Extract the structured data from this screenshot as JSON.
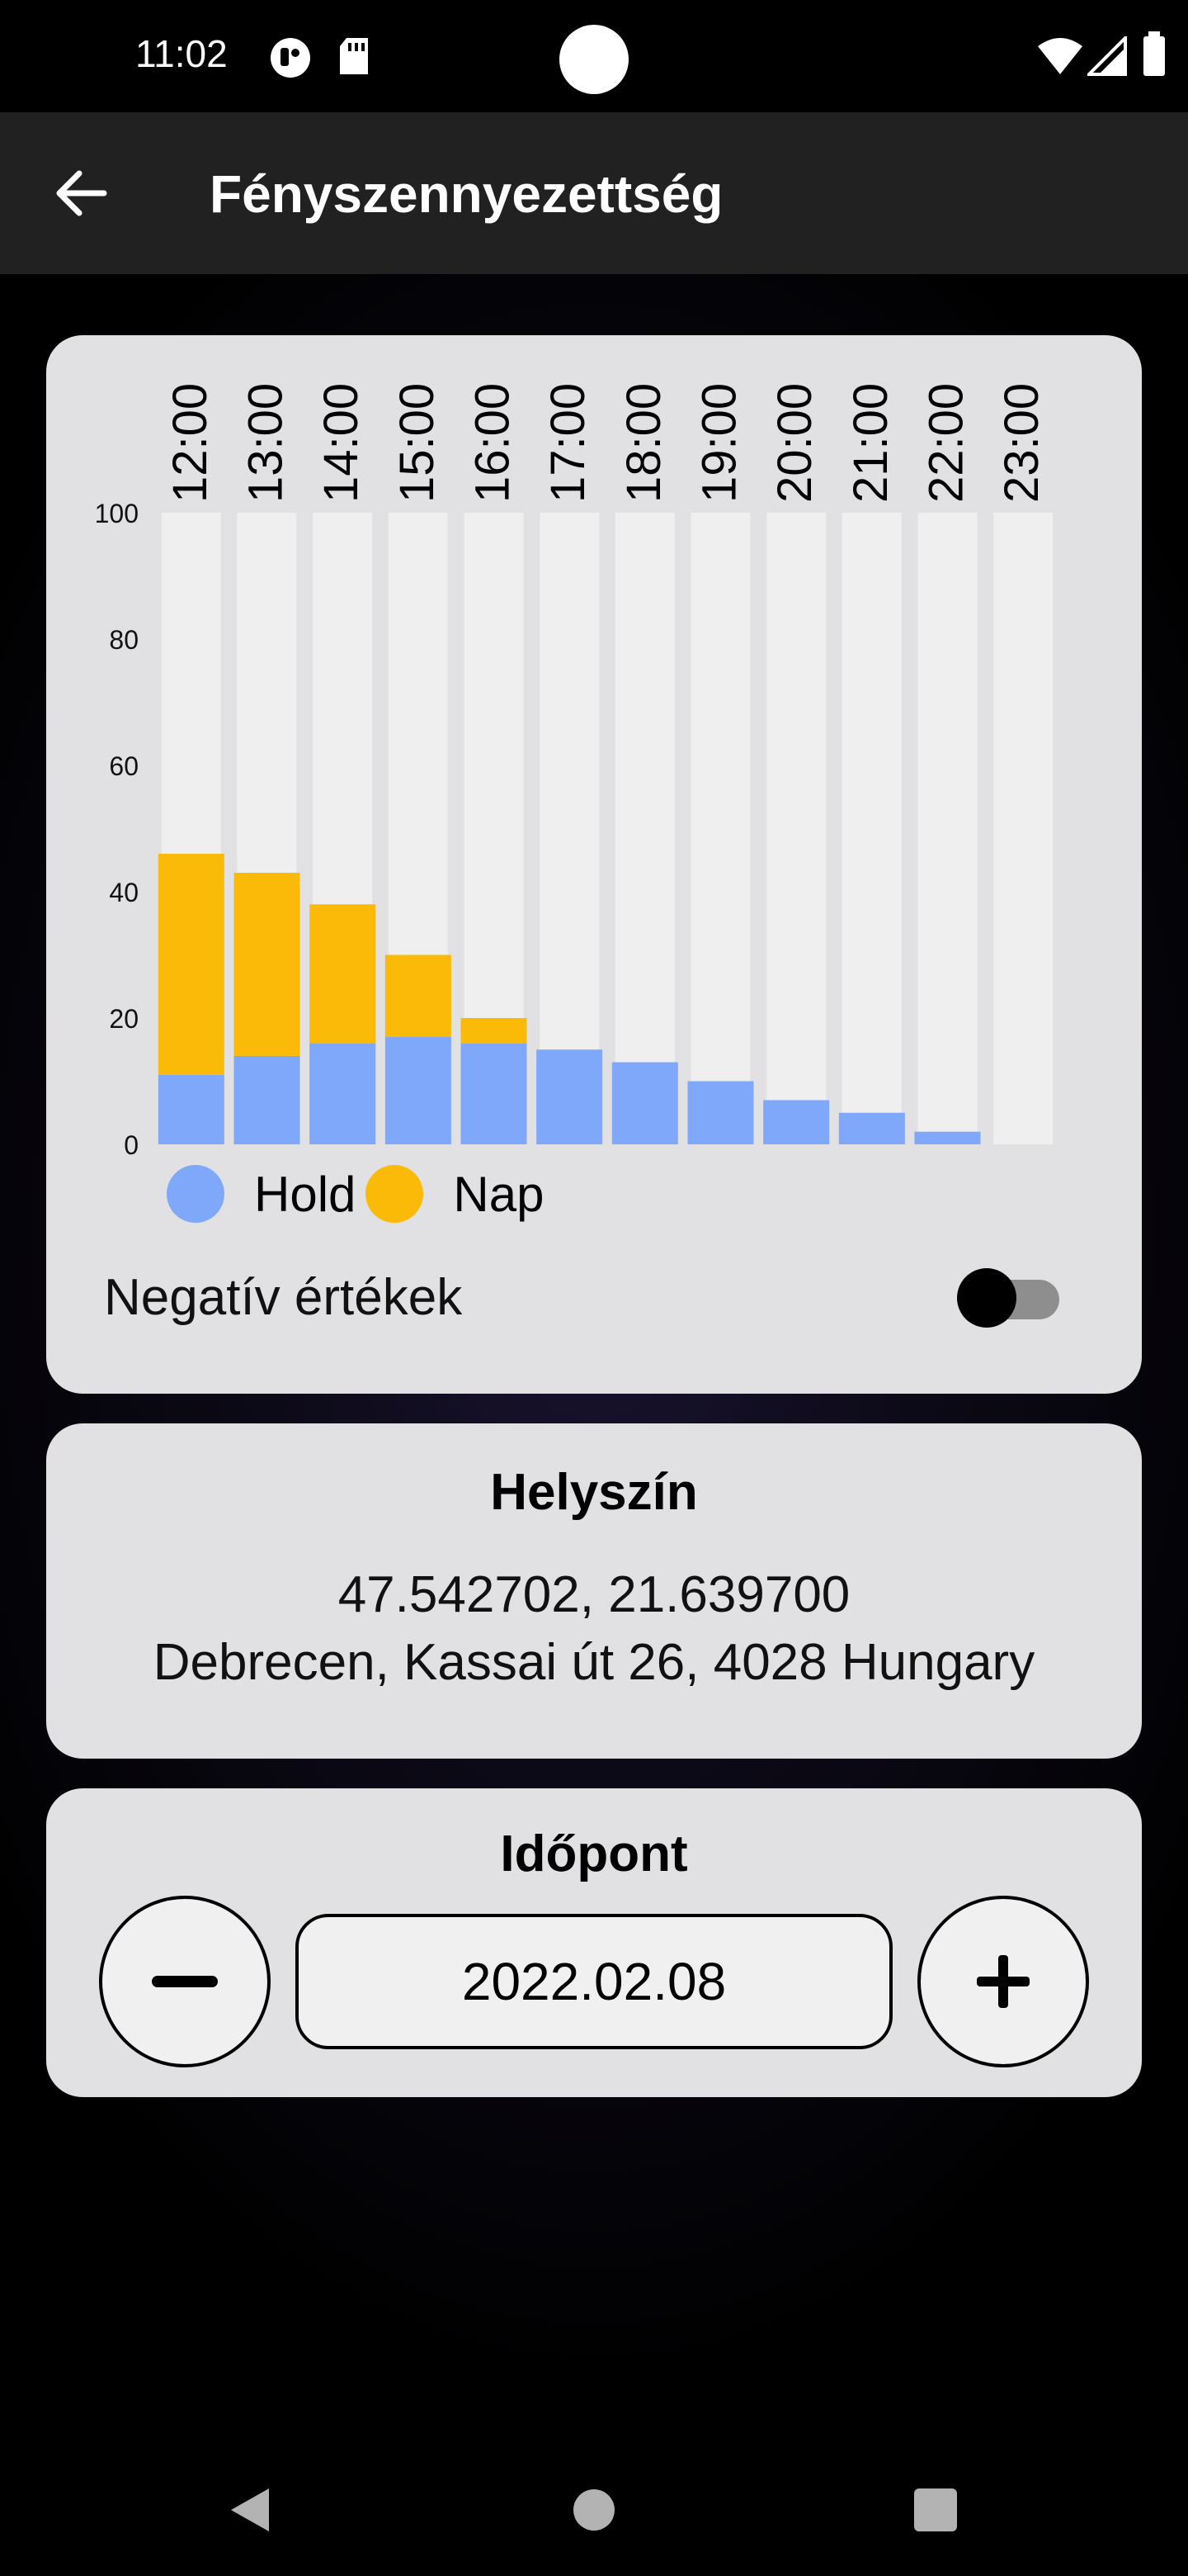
{
  "status_bar": {
    "time": "11:02"
  },
  "app_bar": {
    "title": "Fényszennyezettség",
    "back_icon": "arrow-left-icon"
  },
  "chart_data": {
    "type": "bar",
    "stacked": true,
    "categories": [
      "12:00",
      "13:00",
      "14:00",
      "15:00",
      "16:00",
      "17:00",
      "18:00",
      "19:00",
      "20:00",
      "21:00",
      "22:00",
      "23:00"
    ],
    "series": [
      {
        "name": "Hold",
        "color": "#7fa7fa",
        "values": [
          11,
          14,
          16,
          17,
          16,
          15,
          13,
          10,
          7,
          5,
          2,
          0
        ]
      },
      {
        "name": "Nap",
        "color": "#fbba08",
        "values": [
          35,
          29,
          22,
          13,
          4,
          0,
          0,
          0,
          0,
          0,
          0,
          0
        ]
      }
    ],
    "ylim": [
      0,
      100
    ],
    "yticks": [
      "0",
      "20",
      "40",
      "60",
      "80",
      "100"
    ],
    "track_color": "#efefef",
    "legend_position": "bottom-left"
  },
  "negative_toggle": {
    "label": "Negatív értékek",
    "enabled": false
  },
  "location": {
    "heading": "Helyszín",
    "coordinates": "47.542702, 21.639700",
    "address": "Debrecen, Kassai út 26, 4028 Hungary"
  },
  "time": {
    "heading": "Időpont",
    "date": "2022.02.08",
    "decrement_icon": "minus-icon",
    "increment_icon": "plus-icon"
  }
}
